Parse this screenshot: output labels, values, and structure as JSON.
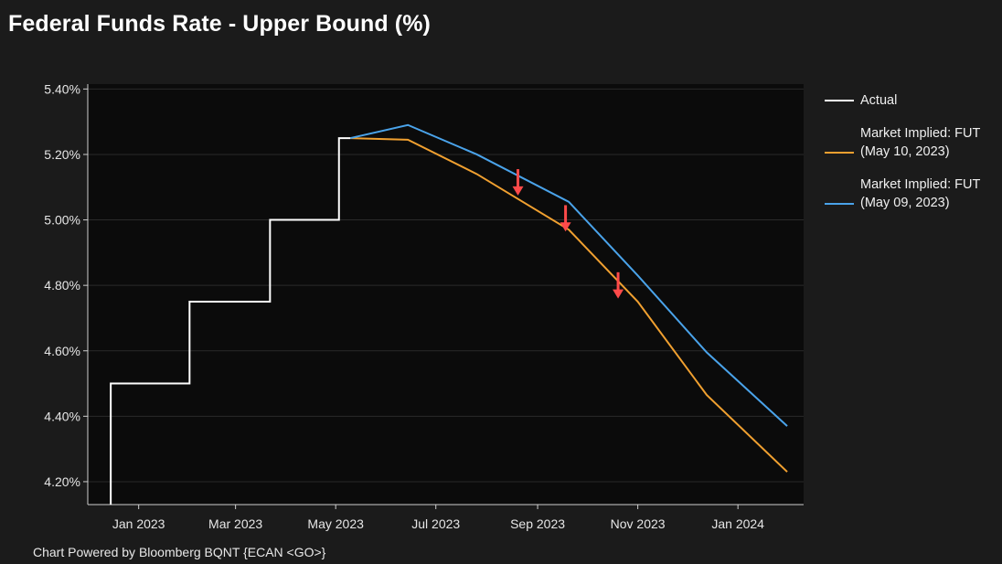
{
  "title": "Federal Funds Rate - Upper Bound (%)",
  "footer": "Chart Powered by Bloomberg BQNT {ECAN <GO>}",
  "colors": {
    "background": "#1b1b1b",
    "plot_background": "#0b0b0b",
    "actual": "#ffffff",
    "may10": "#f0a030",
    "may09": "#4aa3ea",
    "arrow": "#ff4a4a"
  },
  "legend": {
    "items": [
      {
        "label": "Actual",
        "color": "#ffffff"
      },
      {
        "label": "Market Implied: FUT\n(May 10, 2023)",
        "color": "#f0a030"
      },
      {
        "label": "Market Implied: FUT\n(May 09, 2023)",
        "color": "#4aa3ea"
      }
    ]
  },
  "chart_data": {
    "type": "line",
    "title": "Federal Funds Rate - Upper Bound (%)",
    "xlabel": "",
    "ylabel": "",
    "x_range": [
      "2022-12-01",
      "2024-02-10"
    ],
    "y_range": [
      4.13,
      5.415
    ],
    "x_ticks": [
      {
        "date": "2023-01-01",
        "label": "Jan 2023"
      },
      {
        "date": "2023-03-01",
        "label": "Mar 2023"
      },
      {
        "date": "2023-05-01",
        "label": "May 2023"
      },
      {
        "date": "2023-07-01",
        "label": "Jul 2023"
      },
      {
        "date": "2023-09-01",
        "label": "Sep 2023"
      },
      {
        "date": "2023-11-01",
        "label": "Nov 2023"
      },
      {
        "date": "2024-01-01",
        "label": "Jan 2024"
      }
    ],
    "y_ticks": [
      {
        "value": 4.2,
        "label": "4.20%"
      },
      {
        "value": 4.4,
        "label": "4.40%"
      },
      {
        "value": 4.6,
        "label": "4.60%"
      },
      {
        "value": 4.8,
        "label": "4.80%"
      },
      {
        "value": 5.0,
        "label": "5.00%"
      },
      {
        "value": 5.2,
        "label": "5.20%"
      },
      {
        "value": 5.4,
        "label": "5.40%"
      }
    ],
    "grid": true,
    "legend_position": "right",
    "series": [
      {
        "name": "Actual",
        "color": "#ffffff",
        "step": true,
        "points": [
          {
            "x": "2022-12-15",
            "y": 4.13
          },
          {
            "x": "2022-12-15",
            "y": 4.5
          },
          {
            "x": "2023-02-01",
            "y": 4.5
          },
          {
            "x": "2023-02-01",
            "y": 4.75
          },
          {
            "x": "2023-03-22",
            "y": 4.75
          },
          {
            "x": "2023-03-22",
            "y": 5.0
          },
          {
            "x": "2023-05-03",
            "y": 5.0
          },
          {
            "x": "2023-05-03",
            "y": 5.25
          },
          {
            "x": "2023-05-10",
            "y": 5.25
          }
        ]
      },
      {
        "name": "Market Implied: FUT (May 10, 2023)",
        "color": "#f0a030",
        "step": false,
        "points": [
          {
            "x": "2023-05-10",
            "y": 5.25
          },
          {
            "x": "2023-06-14",
            "y": 5.245
          },
          {
            "x": "2023-07-26",
            "y": 5.14
          },
          {
            "x": "2023-09-20",
            "y": 4.97
          },
          {
            "x": "2023-11-01",
            "y": 4.75
          },
          {
            "x": "2023-12-13",
            "y": 4.465
          },
          {
            "x": "2024-01-31",
            "y": 4.23
          }
        ]
      },
      {
        "name": "Market Implied: FUT (May 09, 2023)",
        "color": "#4aa3ea",
        "step": false,
        "points": [
          {
            "x": "2023-05-10",
            "y": 5.25
          },
          {
            "x": "2023-06-14",
            "y": 5.29
          },
          {
            "x": "2023-07-26",
            "y": 5.2
          },
          {
            "x": "2023-09-20",
            "y": 5.055
          },
          {
            "x": "2023-11-01",
            "y": 4.83
          },
          {
            "x": "2023-12-13",
            "y": 4.595
          },
          {
            "x": "2024-01-31",
            "y": 4.37
          }
        ]
      }
    ],
    "annotations": [
      {
        "type": "arrow-down",
        "x": "2023-08-20",
        "y_from": 5.155,
        "y_to": 5.08
      },
      {
        "type": "arrow-down",
        "x": "2023-09-18",
        "y_from": 5.045,
        "y_to": 4.97
      },
      {
        "type": "arrow-down",
        "x": "2023-10-20",
        "y_from": 4.84,
        "y_to": 4.765
      }
    ]
  }
}
